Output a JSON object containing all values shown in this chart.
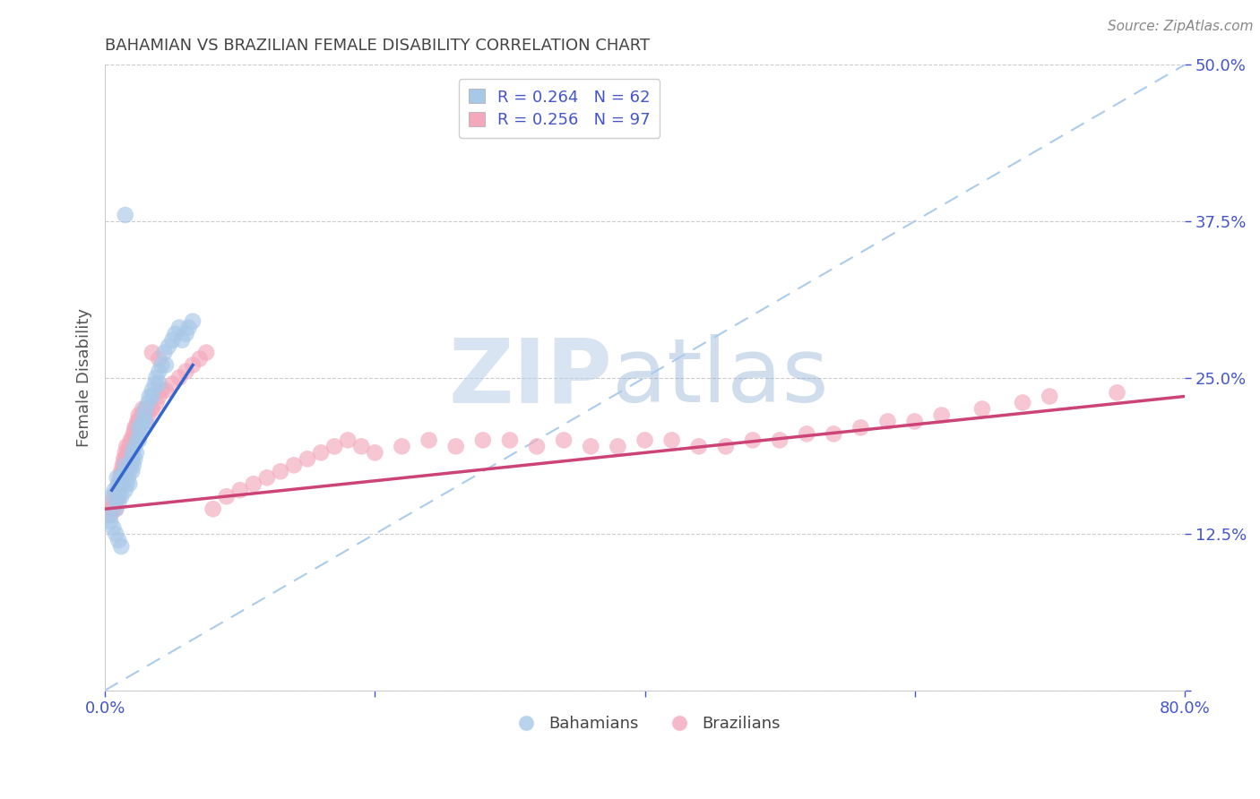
{
  "title": "BAHAMIAN VS BRAZILIAN FEMALE DISABILITY CORRELATION CHART",
  "source_text": "Source: ZipAtlas.com",
  "ylabel": "Female Disability",
  "watermark_ZIP": "ZIP",
  "watermark_atlas": "atlas",
  "xlim": [
    0.0,
    0.8
  ],
  "ylim": [
    0.0,
    0.5
  ],
  "yticks": [
    0.0,
    0.125,
    0.25,
    0.375,
    0.5
  ],
  "ytick_labels": [
    "",
    "12.5%",
    "25.0%",
    "37.5%",
    "50.0%"
  ],
  "blue_scatter_color": "#a8c8e8",
  "pink_scatter_color": "#f4a8bc",
  "blue_line_color": "#3366cc",
  "pink_line_color": "#cc4477",
  "ref_line_color": "#aaccee",
  "legend_R_blue": "R = 0.264",
  "legend_N_blue": "N = 62",
  "legend_R_pink": "R = 0.256",
  "legend_N_pink": "N = 97",
  "title_color": "#444444",
  "source_color": "#888888",
  "axis_label_color": "#555555",
  "tick_color": "#4455cc",
  "grid_color": "#cccccc",
  "bahamian_x": [
    0.005,
    0.007,
    0.008,
    0.009,
    0.01,
    0.01,
    0.01,
    0.011,
    0.012,
    0.012,
    0.013,
    0.014,
    0.015,
    0.015,
    0.015,
    0.016,
    0.017,
    0.018,
    0.018,
    0.019,
    0.02,
    0.02,
    0.02,
    0.021,
    0.022,
    0.022,
    0.023,
    0.024,
    0.025,
    0.025,
    0.026,
    0.027,
    0.028,
    0.029,
    0.03,
    0.03,
    0.032,
    0.033,
    0.035,
    0.035,
    0.037,
    0.038,
    0.04,
    0.04,
    0.042,
    0.044,
    0.045,
    0.047,
    0.05,
    0.052,
    0.055,
    0.057,
    0.06,
    0.062,
    0.065,
    0.003,
    0.004,
    0.006,
    0.008,
    0.01,
    0.012,
    0.015
  ],
  "bahamian_y": [
    0.155,
    0.16,
    0.145,
    0.17,
    0.165,
    0.155,
    0.15,
    0.16,
    0.17,
    0.155,
    0.165,
    0.17,
    0.175,
    0.16,
    0.18,
    0.165,
    0.17,
    0.175,
    0.165,
    0.18,
    0.19,
    0.175,
    0.185,
    0.18,
    0.195,
    0.185,
    0.19,
    0.2,
    0.21,
    0.2,
    0.205,
    0.21,
    0.215,
    0.22,
    0.225,
    0.215,
    0.23,
    0.235,
    0.24,
    0.235,
    0.245,
    0.25,
    0.255,
    0.245,
    0.26,
    0.27,
    0.26,
    0.275,
    0.28,
    0.285,
    0.29,
    0.28,
    0.285,
    0.29,
    0.295,
    0.14,
    0.135,
    0.13,
    0.125,
    0.12,
    0.115,
    0.38
  ],
  "brazilian_x": [
    0.003,
    0.004,
    0.005,
    0.006,
    0.007,
    0.008,
    0.008,
    0.009,
    0.009,
    0.01,
    0.01,
    0.01,
    0.011,
    0.011,
    0.012,
    0.012,
    0.013,
    0.013,
    0.014,
    0.014,
    0.015,
    0.015,
    0.015,
    0.016,
    0.016,
    0.017,
    0.017,
    0.018,
    0.018,
    0.019,
    0.02,
    0.02,
    0.02,
    0.021,
    0.022,
    0.022,
    0.023,
    0.024,
    0.025,
    0.025,
    0.027,
    0.028,
    0.03,
    0.03,
    0.032,
    0.034,
    0.035,
    0.038,
    0.04,
    0.042,
    0.045,
    0.05,
    0.055,
    0.06,
    0.065,
    0.07,
    0.075,
    0.08,
    0.09,
    0.1,
    0.11,
    0.12,
    0.13,
    0.14,
    0.15,
    0.16,
    0.17,
    0.18,
    0.19,
    0.2,
    0.22,
    0.24,
    0.26,
    0.28,
    0.3,
    0.32,
    0.34,
    0.36,
    0.38,
    0.4,
    0.42,
    0.44,
    0.46,
    0.48,
    0.5,
    0.52,
    0.54,
    0.56,
    0.58,
    0.6,
    0.62,
    0.65,
    0.68,
    0.7,
    0.75,
    0.035,
    0.04
  ],
  "brazilian_y": [
    0.145,
    0.14,
    0.15,
    0.145,
    0.155,
    0.15,
    0.145,
    0.155,
    0.16,
    0.16,
    0.155,
    0.165,
    0.165,
    0.17,
    0.17,
    0.175,
    0.175,
    0.18,
    0.18,
    0.185,
    0.185,
    0.19,
    0.175,
    0.195,
    0.18,
    0.19,
    0.185,
    0.195,
    0.19,
    0.2,
    0.195,
    0.2,
    0.19,
    0.205,
    0.205,
    0.21,
    0.21,
    0.215,
    0.215,
    0.22,
    0.22,
    0.225,
    0.225,
    0.215,
    0.22,
    0.225,
    0.225,
    0.23,
    0.235,
    0.24,
    0.24,
    0.245,
    0.25,
    0.255,
    0.26,
    0.265,
    0.27,
    0.145,
    0.155,
    0.16,
    0.165,
    0.17,
    0.175,
    0.18,
    0.185,
    0.19,
    0.195,
    0.2,
    0.195,
    0.19,
    0.195,
    0.2,
    0.195,
    0.2,
    0.2,
    0.195,
    0.2,
    0.195,
    0.195,
    0.2,
    0.2,
    0.195,
    0.195,
    0.2,
    0.2,
    0.205,
    0.205,
    0.21,
    0.215,
    0.215,
    0.22,
    0.225,
    0.23,
    0.235,
    0.238,
    0.27,
    0.265
  ],
  "blue_line_x": [
    0.005,
    0.065
  ],
  "blue_line_y": [
    0.16,
    0.26
  ],
  "pink_line_x": [
    0.0,
    0.8
  ],
  "pink_line_y": [
    0.145,
    0.235
  ],
  "ref_line_x": [
    0.0,
    0.8
  ],
  "ref_line_y": [
    0.0,
    0.5
  ]
}
